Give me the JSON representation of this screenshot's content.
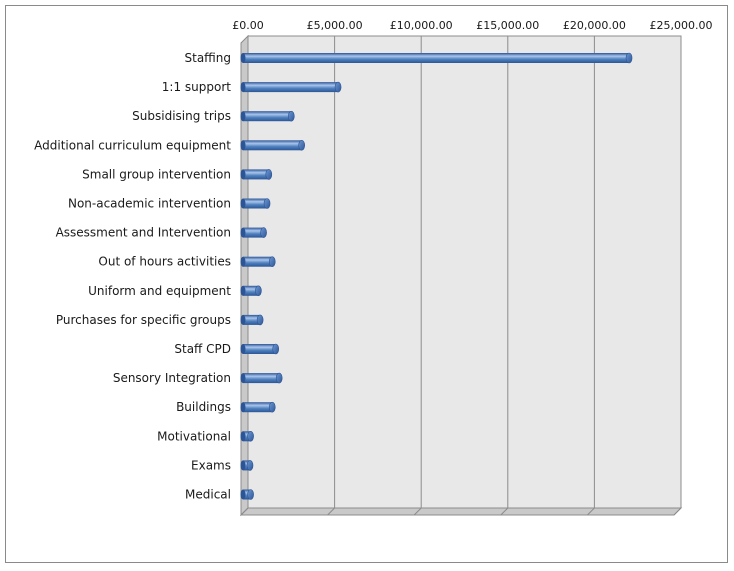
{
  "chart_data": {
    "type": "bar",
    "orientation": "horizontal",
    "title": "",
    "xlabel": "",
    "ylabel": "",
    "xlim": [
      0,
      25000
    ],
    "x_ticks": [
      0,
      5000,
      10000,
      15000,
      20000,
      25000
    ],
    "x_tick_labels": [
      "£0.00",
      "£5,000.00",
      "£10,000.00",
      "£15,000.00",
      "£20,000.00",
      "£25,000.00"
    ],
    "x_axis_position": "top",
    "grid": true,
    "legend": "none",
    "categories": [
      "Staffing",
      "1:1 support",
      "Subsidising trips",
      "Additional curriculum equipment",
      "Small group intervention",
      "Non-academic intervention",
      "Assessment and Intervention",
      "Out of hours activities",
      "Uniform and equipment",
      "Purchases for specific groups",
      "Staff CPD",
      "Sensory Integration",
      "Buildings",
      "Motivational",
      "Exams",
      "Medical"
    ],
    "values": [
      22000,
      5200,
      2500,
      3100,
      1200,
      1100,
      900,
      1400,
      600,
      700,
      1600,
      1800,
      1400,
      150,
      100,
      150
    ],
    "colors": {
      "bar": "#4f81bd",
      "bar_dark": "#2c5597",
      "bar_light": "#a9c5ec",
      "plot_back": "#e8e8e8",
      "plot_floor": "#c9c9c9",
      "grid": "#8c8c8c"
    }
  }
}
